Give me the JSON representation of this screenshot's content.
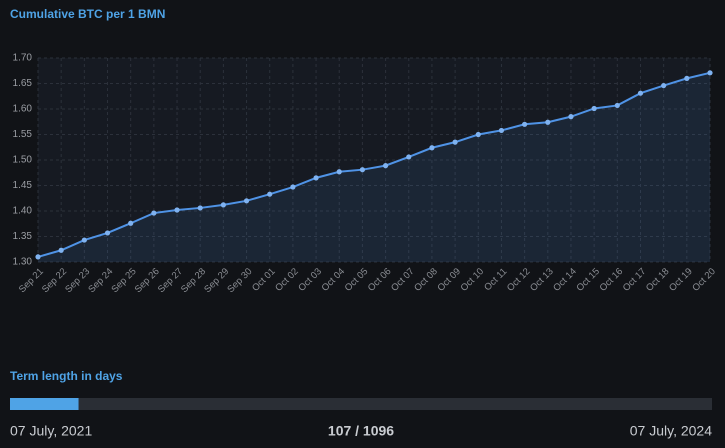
{
  "chart_data": {
    "type": "line",
    "title": "Cumulative BTC per 1 BMN",
    "categories": [
      "Sep 21",
      "Sep 22",
      "Sep 23",
      "Sep 24",
      "Sep 25",
      "Sep 26",
      "Sep 27",
      "Sep 28",
      "Sep 29",
      "Sep 30",
      "Oct 01",
      "Oct 02",
      "Oct 03",
      "Oct 04",
      "Oct 05",
      "Oct 06",
      "Oct 07",
      "Oct 08",
      "Oct 09",
      "Oct 10",
      "Oct 11",
      "Oct 12",
      "Oct 13",
      "Oct 14",
      "Oct 15",
      "Oct 16",
      "Oct 17",
      "Oct 18",
      "Oct 19",
      "Oct 20"
    ],
    "values": [
      1.31,
      1.323,
      1.343,
      1.357,
      1.376,
      1.396,
      1.402,
      1.406,
      1.412,
      1.42,
      1.433,
      1.447,
      1.465,
      1.477,
      1.481,
      1.489,
      1.506,
      1.524,
      1.535,
      1.55,
      1.558,
      1.57,
      1.574,
      1.585,
      1.601,
      1.607,
      1.631,
      1.646,
      1.66,
      1.671
    ],
    "color": "#4f93e6",
    "ylim": [
      1.3,
      1.7
    ],
    "yticks": [
      {
        "value": 1.3,
        "label": "1.30"
      },
      1.35,
      {
        "value": 1.4,
        "label": "1.40"
      },
      1.45,
      {
        "value": 1.5,
        "label": "1.50"
      },
      1.55,
      {
        "value": 1.6,
        "label": "1.60"
      },
      1.65,
      {
        "value": 1.7,
        "label": "1.70"
      }
    ],
    "grid": true
  },
  "term": {
    "title": "Term length in days",
    "current": 107,
    "total": 1096,
    "progress_label": "107 / 1096",
    "start": "07 July, 2021",
    "end": "07 July, 2024",
    "color": "#4fa3e6"
  }
}
